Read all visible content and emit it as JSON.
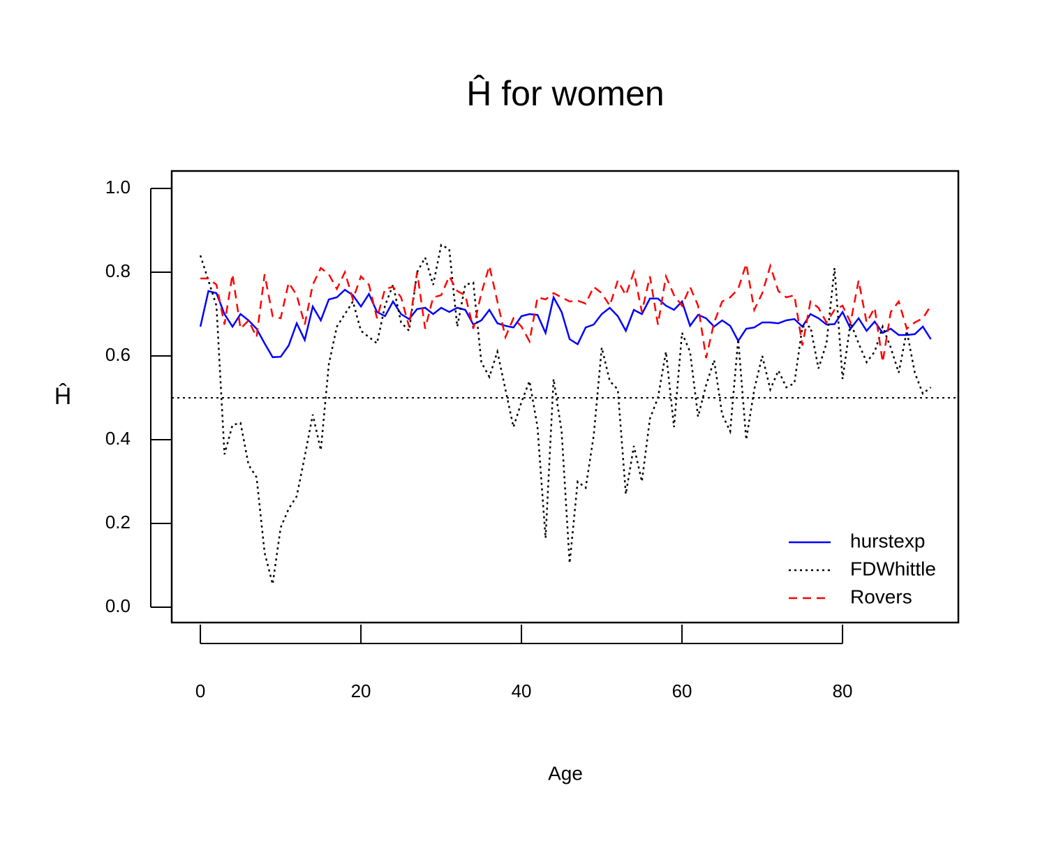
{
  "chart_data": {
    "type": "line",
    "title": "Ĥ for women",
    "x_label": "Age",
    "y_label": "Ĥ",
    "x": [
      0,
      1,
      2,
      3,
      4,
      5,
      6,
      7,
      8,
      9,
      10,
      11,
      12,
      13,
      14,
      15,
      16,
      17,
      18,
      19,
      20,
      21,
      22,
      23,
      24,
      25,
      26,
      27,
      28,
      29,
      30,
      31,
      32,
      33,
      34,
      35,
      36,
      37,
      38,
      39,
      40,
      41,
      42,
      43,
      44,
      45,
      46,
      47,
      48,
      49,
      50,
      51,
      52,
      53,
      54,
      55,
      56,
      57,
      58,
      59,
      60,
      61,
      62,
      63,
      64,
      65,
      66,
      67,
      68,
      69,
      70,
      71,
      72,
      73,
      74,
      75,
      76,
      77,
      78,
      79,
      80,
      81,
      82,
      83,
      84,
      85,
      86,
      87,
      88,
      89,
      90,
      91
    ],
    "series": [
      {
        "name": "hurstexp",
        "color": "#0000ff",
        "linestyle": "solid",
        "values": [
          0.67,
          0.755,
          0.75,
          0.7,
          0.67,
          0.7,
          0.685,
          0.665,
          0.63,
          0.597,
          0.598,
          0.625,
          0.678,
          0.638,
          0.718,
          0.685,
          0.735,
          0.74,
          0.758,
          0.745,
          0.718,
          0.748,
          0.705,
          0.695,
          0.73,
          0.7,
          0.688,
          0.712,
          0.715,
          0.7,
          0.715,
          0.705,
          0.715,
          0.71,
          0.675,
          0.685,
          0.71,
          0.678,
          0.672,
          0.668,
          0.695,
          0.7,
          0.698,
          0.655,
          0.74,
          0.705,
          0.64,
          0.628,
          0.668,
          0.675,
          0.7,
          0.715,
          0.695,
          0.66,
          0.71,
          0.7,
          0.737,
          0.737,
          0.72,
          0.71,
          0.73,
          0.672,
          0.698,
          0.69,
          0.67,
          0.685,
          0.672,
          0.636,
          0.665,
          0.668,
          0.68,
          0.68,
          0.678,
          0.685,
          0.688,
          0.67,
          0.7,
          0.69,
          0.675,
          0.676,
          0.705,
          0.665,
          0.69,
          0.66,
          0.682,
          0.655,
          0.665,
          0.65,
          0.65,
          0.652,
          0.67,
          0.64
        ]
      },
      {
        "name": "FDWhittle",
        "color": "#000000",
        "linestyle": "dotted",
        "values": [
          0.84,
          0.78,
          0.72,
          0.365,
          0.435,
          0.44,
          0.34,
          0.31,
          0.13,
          0.055,
          0.19,
          0.235,
          0.265,
          0.36,
          0.46,
          0.375,
          0.58,
          0.67,
          0.7,
          0.73,
          0.66,
          0.645,
          0.63,
          0.72,
          0.77,
          0.68,
          0.66,
          0.8,
          0.835,
          0.77,
          0.865,
          0.855,
          0.67,
          0.77,
          0.775,
          0.585,
          0.55,
          0.61,
          0.52,
          0.43,
          0.49,
          0.54,
          0.43,
          0.165,
          0.545,
          0.42,
          0.105,
          0.3,
          0.285,
          0.41,
          0.62,
          0.54,
          0.52,
          0.27,
          0.385,
          0.3,
          0.45,
          0.5,
          0.61,
          0.43,
          0.655,
          0.61,
          0.455,
          0.53,
          0.59,
          0.46,
          0.42,
          0.64,
          0.4,
          0.52,
          0.6,
          0.52,
          0.565,
          0.525,
          0.535,
          0.67,
          0.67,
          0.57,
          0.63,
          0.81,
          0.545,
          0.68,
          0.63,
          0.585,
          0.61,
          0.67,
          0.62,
          0.56,
          0.66,
          0.56,
          0.51,
          0.525
        ]
      },
      {
        "name": "Rovers",
        "color": "#ff0000",
        "linestyle": "dashed",
        "values": [
          0.785,
          0.785,
          0.77,
          0.675,
          0.795,
          0.665,
          0.685,
          0.645,
          0.795,
          0.695,
          0.69,
          0.775,
          0.745,
          0.675,
          0.77,
          0.81,
          0.795,
          0.76,
          0.8,
          0.735,
          0.79,
          0.77,
          0.69,
          0.76,
          0.765,
          0.74,
          0.67,
          0.8,
          0.665,
          0.74,
          0.745,
          0.79,
          0.755,
          0.745,
          0.665,
          0.75,
          0.815,
          0.73,
          0.645,
          0.69,
          0.67,
          0.635,
          0.74,
          0.735,
          0.75,
          0.74,
          0.73,
          0.732,
          0.725,
          0.765,
          0.75,
          0.72,
          0.78,
          0.745,
          0.8,
          0.705,
          0.79,
          0.675,
          0.79,
          0.745,
          0.72,
          0.765,
          0.72,
          0.595,
          0.68,
          0.73,
          0.74,
          0.76,
          0.82,
          0.71,
          0.75,
          0.815,
          0.755,
          0.74,
          0.745,
          0.625,
          0.73,
          0.715,
          0.68,
          0.71,
          0.72,
          0.68,
          0.78,
          0.68,
          0.715,
          0.585,
          0.705,
          0.73,
          0.665,
          0.68,
          0.69,
          0.72
        ]
      }
    ],
    "hline": 0.5,
    "xlim": [
      -3.57,
      94.43
    ],
    "ylim": [
      -0.0367,
      1.0417
    ],
    "xticks": [
      0,
      20,
      40,
      60,
      80
    ],
    "yticks": [
      {
        "value": 0,
        "label": "0.0"
      },
      {
        "value": 0.2,
        "label": "0.2"
      },
      {
        "value": 0.4,
        "label": "0.4"
      },
      {
        "value": 0.6,
        "label": "0.6"
      },
      {
        "value": 0.8,
        "label": "0.8"
      },
      {
        "value": 1,
        "label": "1.0"
      }
    ],
    "legend": "bottom-right"
  }
}
